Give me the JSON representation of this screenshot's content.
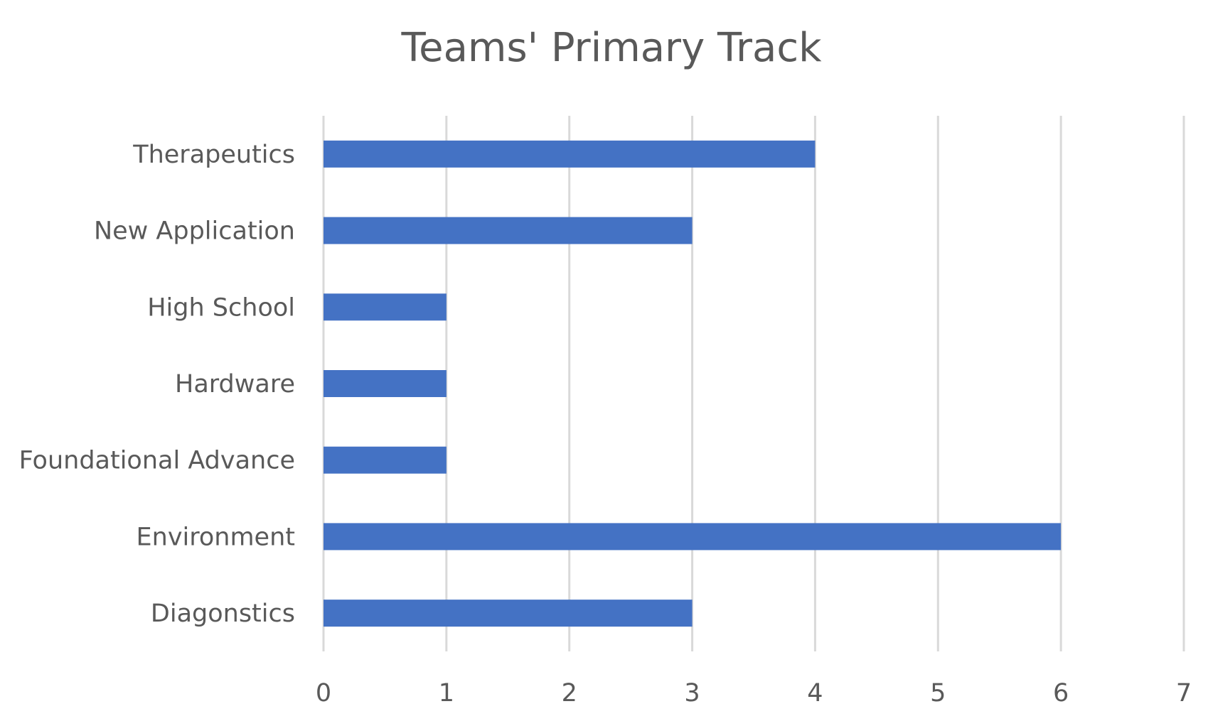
{
  "chart_data": {
    "type": "bar",
    "orientation": "horizontal",
    "title": "Teams' Primary Track",
    "categories": [
      "Therapeutics",
      "New Application",
      "High School",
      "Hardware",
      "Foundational Advance",
      "Environment",
      "Diagonstics"
    ],
    "values": [
      4,
      3,
      1,
      1,
      1,
      6,
      3
    ],
    "xlim": [
      0,
      7
    ],
    "xticks": [
      "0",
      "1",
      "2",
      "3",
      "4",
      "5",
      "6",
      "7"
    ],
    "xlabel": "",
    "ylabel": "",
    "grid": "vertical",
    "legend": "none",
    "bar_color": "#4472C4",
    "grid_color": "#D9D9D9",
    "text_color": "#595959"
  }
}
